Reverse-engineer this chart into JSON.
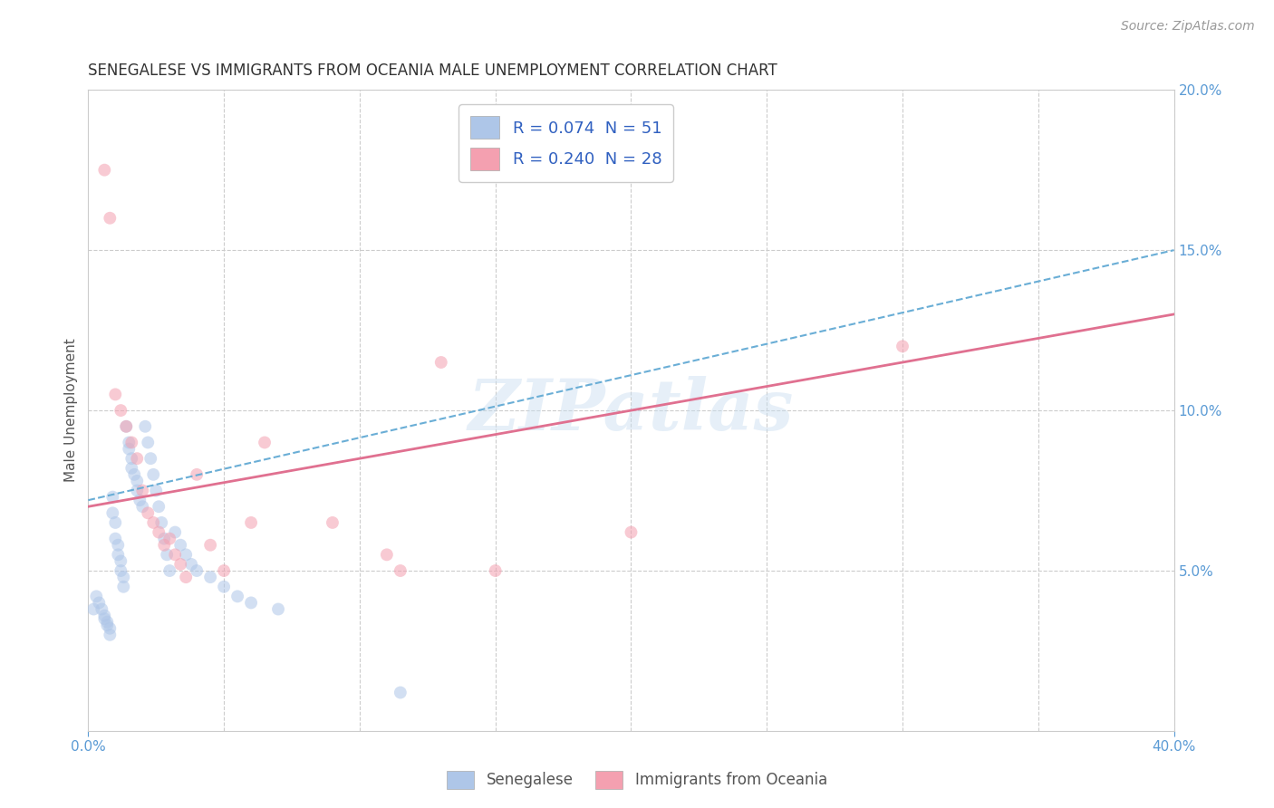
{
  "title": "SENEGALESE VS IMMIGRANTS FROM OCEANIA MALE UNEMPLOYMENT CORRELATION CHART",
  "source": "Source: ZipAtlas.com",
  "ylabel": "Male Unemployment",
  "xlim": [
    0.0,
    0.4
  ],
  "ylim": [
    0.0,
    0.2
  ],
  "yticks_right": [
    0.05,
    0.1,
    0.15,
    0.2
  ],
  "yticklabels_right": [
    "5.0%",
    "10.0%",
    "15.0%",
    "20.0%"
  ],
  "watermark": "ZIPatlas",
  "legend_entries": [
    {
      "label": "R = 0.074  N = 51",
      "color": "#aec6e8"
    },
    {
      "label": "R = 0.240  N = 28",
      "color": "#f4a0b0"
    }
  ],
  "blue_scatter_x": [
    0.002,
    0.003,
    0.004,
    0.005,
    0.006,
    0.006,
    0.007,
    0.007,
    0.008,
    0.008,
    0.009,
    0.009,
    0.01,
    0.01,
    0.011,
    0.011,
    0.012,
    0.012,
    0.013,
    0.013,
    0.014,
    0.015,
    0.015,
    0.016,
    0.016,
    0.017,
    0.018,
    0.018,
    0.019,
    0.02,
    0.021,
    0.022,
    0.023,
    0.024,
    0.025,
    0.026,
    0.027,
    0.028,
    0.029,
    0.03,
    0.032,
    0.034,
    0.036,
    0.038,
    0.04,
    0.045,
    0.05,
    0.055,
    0.06,
    0.07,
    0.115
  ],
  "blue_scatter_y": [
    0.038,
    0.042,
    0.04,
    0.038,
    0.036,
    0.035,
    0.034,
    0.033,
    0.032,
    0.03,
    0.073,
    0.068,
    0.065,
    0.06,
    0.058,
    0.055,
    0.053,
    0.05,
    0.048,
    0.045,
    0.095,
    0.09,
    0.088,
    0.085,
    0.082,
    0.08,
    0.078,
    0.075,
    0.072,
    0.07,
    0.095,
    0.09,
    0.085,
    0.08,
    0.075,
    0.07,
    0.065,
    0.06,
    0.055,
    0.05,
    0.062,
    0.058,
    0.055,
    0.052,
    0.05,
    0.048,
    0.045,
    0.042,
    0.04,
    0.038,
    0.012
  ],
  "pink_scatter_x": [
    0.006,
    0.008,
    0.01,
    0.012,
    0.014,
    0.016,
    0.018,
    0.02,
    0.022,
    0.024,
    0.026,
    0.028,
    0.03,
    0.032,
    0.034,
    0.036,
    0.04,
    0.045,
    0.05,
    0.06,
    0.065,
    0.09,
    0.11,
    0.115,
    0.13,
    0.15,
    0.2,
    0.3
  ],
  "pink_scatter_y": [
    0.175,
    0.16,
    0.105,
    0.1,
    0.095,
    0.09,
    0.085,
    0.075,
    0.068,
    0.065,
    0.062,
    0.058,
    0.06,
    0.055,
    0.052,
    0.048,
    0.08,
    0.058,
    0.05,
    0.065,
    0.09,
    0.065,
    0.055,
    0.05,
    0.115,
    0.05,
    0.062,
    0.12
  ],
  "blue_line_x": [
    0.0,
    0.4
  ],
  "blue_line_y": [
    0.072,
    0.15
  ],
  "pink_line_x": [
    0.0,
    0.4
  ],
  "pink_line_y": [
    0.07,
    0.13
  ],
  "scatter_alpha": 0.55,
  "scatter_size": 100,
  "title_fontsize": 12,
  "axis_color": "#5b9bd5",
  "grid_color": "#cccccc",
  "background_color": "#ffffff"
}
